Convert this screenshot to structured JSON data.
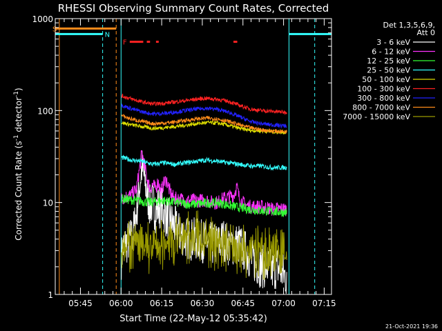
{
  "chart_data": {
    "type": "line",
    "title": "RHESSI Observing Summary Count Rates, Corrected",
    "xlabel": "Start Time (22-May-12 05:35:42)",
    "ylabel_main": "Corrected Count Rate (s",
    "ylabel_sup1": "-1",
    "ylabel_mid": " detector",
    "ylabel_sup2": "-1",
    "ylabel_end": ")",
    "yscale": "log",
    "ylim": [
      1,
      1000
    ],
    "xlim_minutes": [
      0,
      102
    ],
    "x_ticks": [
      {
        "label": "05:45",
        "min": 9.3
      },
      {
        "label": "06:00",
        "min": 24.3
      },
      {
        "label": "06:15",
        "min": 39.3
      },
      {
        "label": "06:30",
        "min": 54.3
      },
      {
        "label": "06:45",
        "min": 69.3
      },
      {
        "label": "07:00",
        "min": 84.3
      },
      {
        "label": "07:15",
        "min": 99.3
      }
    ],
    "y_ticks": [
      {
        "label": "1",
        "v": 1
      },
      {
        "label": "10",
        "v": 10
      },
      {
        "label": "100",
        "v": 100
      },
      {
        "label": "1000",
        "v": 1000
      }
    ],
    "legend_header": [
      "Det 1,3,5,6,9,",
      "Att 0"
    ],
    "legend_position": "top-right",
    "series": [
      {
        "name": "3 - 6 keV",
        "color": "#ffffff",
        "x": [
          24.4,
          25,
          26,
          27,
          28,
          29,
          30,
          31,
          32,
          33,
          34,
          35,
          36,
          37,
          38,
          39,
          40,
          41,
          42,
          43,
          44,
          45,
          46,
          47,
          48,
          50,
          52,
          54,
          56,
          58,
          60,
          62,
          64,
          66,
          68,
          70,
          72,
          74,
          76,
          78,
          80,
          82,
          84,
          85.6
        ],
        "y": [
          2.5,
          3.2,
          3.5,
          3.8,
          4.1,
          5,
          8,
          14,
          24,
          18,
          12,
          9,
          10,
          8,
          9,
          9,
          8,
          7,
          6.5,
          6,
          5.5,
          5,
          4.5,
          4.5,
          4.2,
          4,
          4,
          3.8,
          3.8,
          3.5,
          3.5,
          4,
          3.5,
          3.5,
          3.5,
          3,
          2.5,
          2.2,
          2,
          2,
          1.8,
          2,
          1.7,
          1.5
        ]
      },
      {
        "name": "6 - 12 keV",
        "color": "#ff33ff",
        "x": [
          24.4,
          26,
          28,
          30,
          31,
          32,
          33,
          34,
          35,
          36,
          37,
          38,
          39,
          40,
          41,
          42,
          43,
          44,
          46,
          48,
          50,
          52,
          54,
          56,
          58,
          60,
          62,
          64,
          66,
          67,
          68,
          70,
          72,
          74,
          76,
          78,
          80,
          82,
          84,
          85.6
        ],
        "y": [
          11,
          11.5,
          12,
          14,
          22,
          35,
          25,
          18,
          14,
          16,
          14,
          17,
          13,
          16,
          18,
          14,
          12,
          11,
          11,
          10.5,
          10.5,
          10.5,
          10.5,
          10.5,
          10,
          10,
          11,
          11.5,
          12,
          15,
          11,
          9.5,
          9,
          9,
          9,
          8.8,
          8.5,
          8.5,
          8.5,
          8.5
        ]
      },
      {
        "name": "12 - 25 keV",
        "color": "#33ff33",
        "x": [
          24.4,
          30,
          35,
          40,
          45,
          50,
          55,
          60,
          65,
          70,
          75,
          80,
          85.6
        ],
        "y": [
          11,
          10.5,
          10,
          10.5,
          10,
          9.5,
          9.8,
          10,
          9.2,
          8.6,
          8.2,
          8,
          7.8
        ]
      },
      {
        "name": "25 - 50 keV",
        "color": "#33ffff",
        "x": [
          24.4,
          28,
          32,
          36,
          40,
          44,
          48,
          52,
          56,
          60,
          64,
          68,
          72,
          76,
          80,
          85.6
        ],
        "y": [
          31,
          29,
          28,
          26,
          27,
          26,
          27,
          28,
          29,
          28,
          27,
          26,
          25,
          25,
          24,
          24
        ]
      },
      {
        "name": "50 - 100 keV",
        "color": "#dddd00",
        "x": [
          24.4,
          28,
          32,
          36,
          40,
          44,
          48,
          52,
          56,
          60,
          64,
          68,
          72,
          76,
          80,
          85.6
        ],
        "y": [
          74,
          70,
          67,
          64,
          65,
          67,
          69,
          72,
          74,
          73,
          69,
          64,
          61,
          60,
          59,
          58
        ]
      },
      {
        "name": "100 - 300 keV",
        "color": "#ff2222",
        "x": [
          24.4,
          28,
          32,
          36,
          40,
          44,
          48,
          52,
          56,
          60,
          64,
          68,
          72,
          76,
          80,
          85.6
        ],
        "y": [
          145,
          134,
          124,
          118,
          120,
          124,
          128,
          133,
          136,
          132,
          126,
          114,
          104,
          100,
          98,
          96
        ]
      },
      {
        "name": "300 - 800 keV",
        "color": "#2222ff",
        "x": [
          24.4,
          28,
          32,
          36,
          40,
          44,
          48,
          52,
          56,
          60,
          64,
          68,
          72,
          76,
          80,
          85.6
        ],
        "y": [
          115,
          105,
          97,
          92,
          93,
          96,
          100,
          104,
          106,
          103,
          96,
          86,
          76,
          72,
          70,
          68
        ]
      },
      {
        "name": "800 - 7000 keV",
        "color": "#ff8c1a",
        "x": [
          24.4,
          28,
          32,
          36,
          40,
          44,
          48,
          52,
          56,
          60,
          64,
          68,
          72,
          76,
          80,
          85.6
        ],
        "y": [
          88,
          81,
          76,
          72,
          73,
          75,
          78,
          81,
          83,
          81,
          76,
          70,
          65,
          62,
          60,
          59
        ]
      },
      {
        "name": "7000 - 15000 keV",
        "color": "#999900",
        "x": [
          24.4,
          28,
          32,
          36,
          40,
          44,
          48,
          52,
          56,
          60,
          64,
          68,
          72,
          76,
          80,
          85.6
        ],
        "y": [
          4,
          3.6,
          3.4,
          3.3,
          3.6,
          4,
          4.4,
          4.5,
          4,
          3.8,
          3.6,
          3.3,
          3.2,
          3.1,
          3.1,
          3
        ]
      }
    ],
    "attenuator_lines": [
      {
        "min": 1.5,
        "color": "#ff8c1a",
        "style": "solid"
      },
      {
        "min": 22.5,
        "color": "#ff8c1a",
        "style": "dashed"
      }
    ],
    "night_lines": [
      {
        "min": 17.5,
        "color": "#33ffff",
        "style": "dashed"
      },
      {
        "min": 24.3,
        "color": "#33ffff",
        "style": "solid"
      },
      {
        "min": 86.3,
        "color": "#33ffff",
        "style": "solid"
      },
      {
        "min": 95.8,
        "color": "#33ffff",
        "style": "dashed"
      }
    ],
    "saa_bar": {
      "label": "S",
      "from": 0,
      "to": 22.5,
      "color": "#ff8c1a",
      "v": 780
    },
    "night_bar_segments": [
      {
        "label": "N",
        "from": 0,
        "to": 17.5,
        "color": "#33ffff",
        "v": 680
      },
      {
        "label": "",
        "from": 86.3,
        "to": 102,
        "color": "#33ffff",
        "v": 680
      }
    ],
    "flare_flags": {
      "label": "F",
      "color": "#ff2222",
      "v": 560,
      "segments": [
        [
          27.5,
          32.5
        ],
        [
          33.8,
          35.0
        ],
        [
          37.2,
          38.2
        ],
        [
          65.8,
          67.2
        ]
      ]
    },
    "footer_timestamp": "21-Oct-2021 19:36"
  }
}
